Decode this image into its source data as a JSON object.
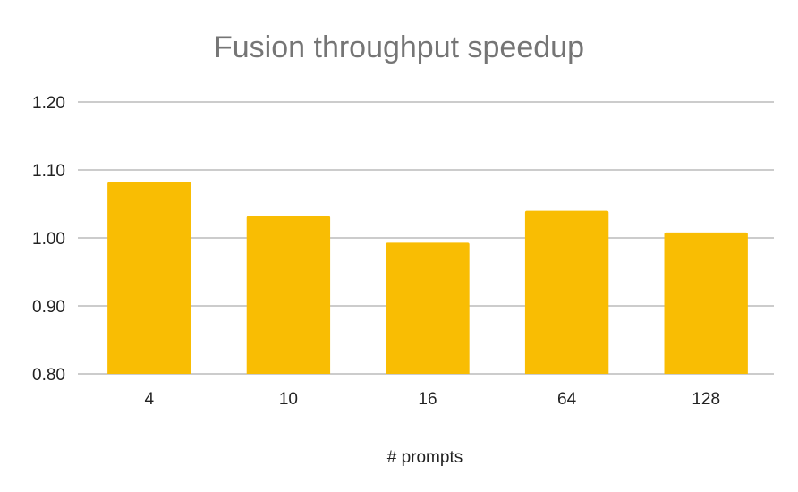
{
  "chart_data": {
    "type": "bar",
    "title": "Fusion throughput speedup",
    "xlabel": "# prompts",
    "ylabel": "",
    "categories": [
      "4",
      "10",
      "16",
      "64",
      "128"
    ],
    "values": [
      1.082,
      1.032,
      0.993,
      1.04,
      1.008
    ],
    "ylim": [
      0.8,
      1.2
    ],
    "yticks": [
      "0.80",
      "0.90",
      "1.00",
      "1.10",
      "1.20"
    ],
    "grid": true,
    "legend": "none",
    "bar_color": "#F9BD03",
    "grid_color": "#CCCCCC"
  }
}
